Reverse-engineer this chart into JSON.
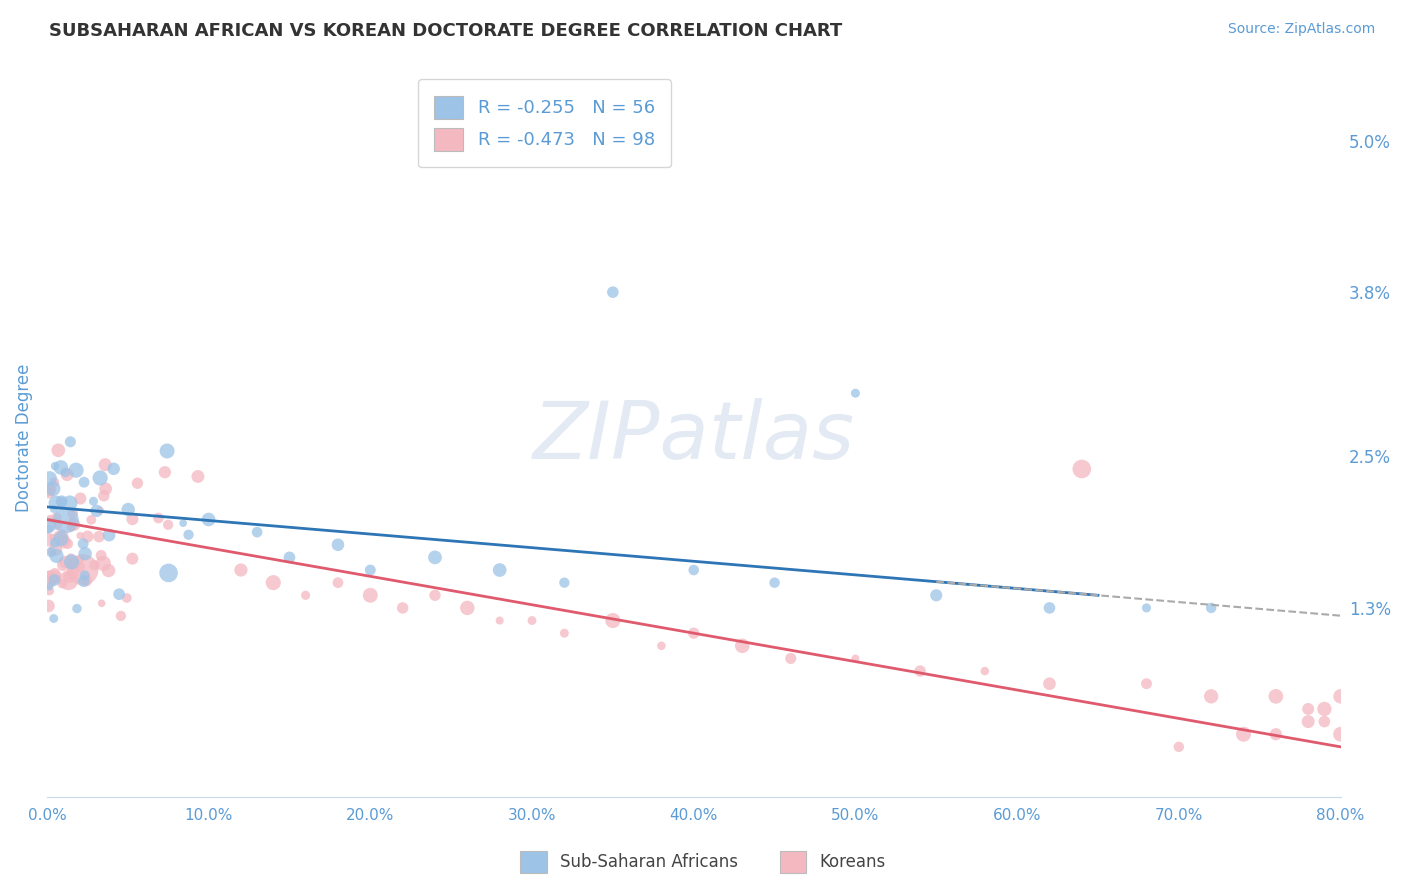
{
  "title": "SUBSAHARAN AFRICAN VS KOREAN DOCTORATE DEGREE CORRELATION CHART",
  "source": "Source: ZipAtlas.com",
  "ylabel": "Doctorate Degree",
  "xlim": [
    0.0,
    0.8
  ],
  "ylim": [
    -0.002,
    0.055
  ],
  "background_color": "#ffffff",
  "grid_color": "#c8d8e8",
  "axis_color": "#5b9bd5",
  "watermark": "ZIPatlas",
  "legend_r1": "R = -0.255",
  "legend_n1": "N = 56",
  "legend_r2": "R = -0.473",
  "legend_n2": "N = 98",
  "series1_color": "#9dc3e6",
  "series2_color": "#f4b8c1",
  "series1_label": "Sub-Saharan Africans",
  "series2_label": "Koreans",
  "trend1_color": "#2e75b6",
  "trend2_color": "#e05a6e",
  "dash_color": "#aaaaaa",
  "ytick_vals": [
    0.013,
    0.025,
    0.038,
    0.05
  ],
  "ytick_labs": [
    "1.3%",
    "2.5%",
    "3.8%",
    "5.0%"
  ],
  "xtick_vals": [
    0.0,
    0.1,
    0.2,
    0.3,
    0.4,
    0.5,
    0.6,
    0.7,
    0.8
  ],
  "xtick_labs": [
    "0.0%",
    "10.0%",
    "20.0%",
    "30.0%",
    "40.0%",
    "50.0%",
    "60.0%",
    "70.0%",
    "80.0%"
  ]
}
